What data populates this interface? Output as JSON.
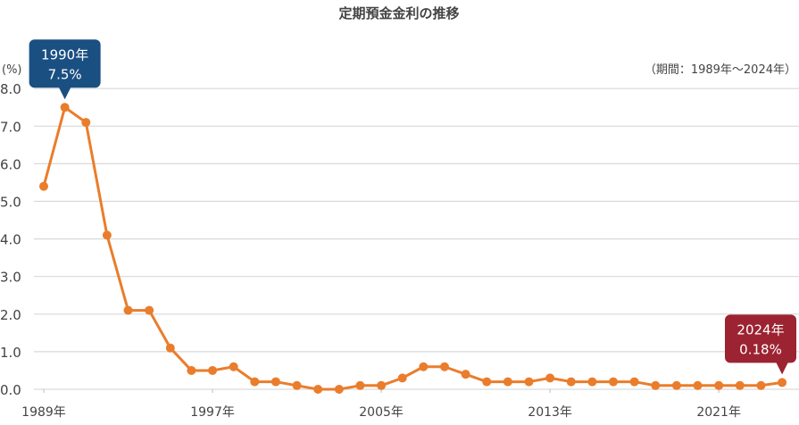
{
  "chart_data": {
    "type": "line",
    "title": "定期預金金利の推移",
    "ylabel": "(%)",
    "note": "（期間：1989年〜2024年）",
    "ylim": [
      0,
      8
    ],
    "yticks": [
      "0.0",
      "1.0",
      "2.0",
      "3.0",
      "4.0",
      "5.0",
      "6.0",
      "7.0",
      "8.0"
    ],
    "xticks": [
      "1989年",
      "1997年",
      "2005年",
      "2013年",
      "2021年"
    ],
    "xtick_years": [
      1989,
      1997,
      2005,
      2013,
      2021
    ],
    "grid": true,
    "x": [
      1989,
      1990,
      1991,
      1992,
      1993,
      1994,
      1995,
      1996,
      1997,
      1998,
      1999,
      2000,
      2001,
      2002,
      2003,
      2004,
      2005,
      2006,
      2007,
      2008,
      2009,
      2010,
      2011,
      2012,
      2013,
      2014,
      2015,
      2016,
      2017,
      2018,
      2019,
      2020,
      2021,
      2022,
      2023,
      2024
    ],
    "values": [
      5.4,
      7.5,
      7.1,
      4.1,
      2.1,
      2.1,
      1.1,
      0.5,
      0.5,
      0.6,
      0.2,
      0.2,
      0.1,
      0.0,
      0.0,
      0.1,
      0.1,
      0.3,
      0.6,
      0.6,
      0.4,
      0.2,
      0.2,
      0.2,
      0.3,
      0.2,
      0.2,
      0.2,
      0.2,
      0.1,
      0.1,
      0.1,
      0.1,
      0.1,
      0.1,
      0.18
    ],
    "annotations": [
      {
        "year": 1990,
        "value": 7.5,
        "line1": "1990年",
        "line2": "7.5%",
        "color": "#1a4f82"
      },
      {
        "year": 2024,
        "value": 0.18,
        "line1": "2024年",
        "line2": "0.18%",
        "color": "#9c2331"
      }
    ],
    "colors": {
      "line": "#ea7d2c",
      "grid": "#d9d9d9",
      "text": "#444444"
    }
  }
}
